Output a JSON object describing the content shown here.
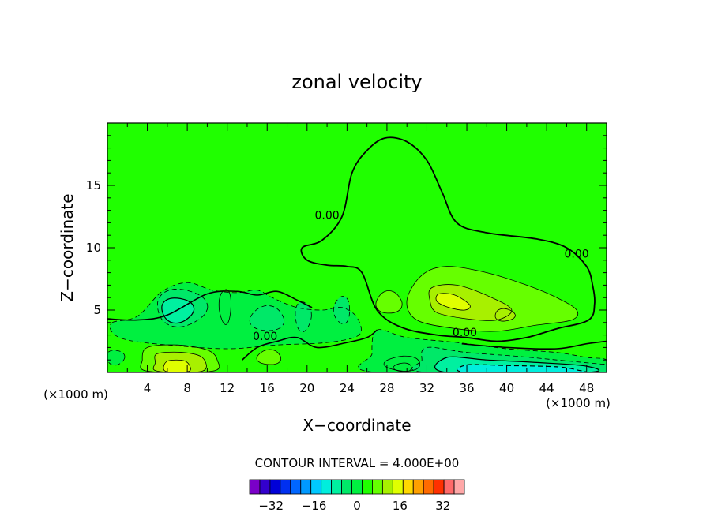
{
  "chart_data": {
    "type": "contour",
    "title": "zonal velocity",
    "xlabel": "X−coordinate",
    "ylabel": "Z−coordinate",
    "x_unit_label": "(×1000 m)",
    "z_unit_label": "(×1000 m)",
    "xlim": [
      0,
      50
    ],
    "ylim": [
      0,
      20
    ],
    "x_ticks": [
      4,
      8,
      12,
      16,
      20,
      24,
      28,
      32,
      36,
      40,
      44,
      48
    ],
    "y_ticks": [
      5,
      10,
      15
    ],
    "contour_interval_text": "CONTOUR INTERVAL = 4.000E+00",
    "contour_labels": [
      {
        "text": "0.00",
        "x": 22.0,
        "z": 12.3
      },
      {
        "text": "0.00",
        "x": 47.0,
        "z": 9.2
      },
      {
        "text": "0.00",
        "x": 15.8,
        "z": 2.6
      },
      {
        "text": "0.00",
        "x": 35.8,
        "z": 2.9
      }
    ],
    "zero_contour": [
      [
        19.5,
        10.0
      ],
      [
        21.5,
        10.6
      ],
      [
        23.5,
        12.5
      ],
      [
        24.5,
        16.0
      ],
      [
        26.0,
        17.8
      ],
      [
        27.8,
        18.8
      ],
      [
        30.0,
        18.5
      ],
      [
        32.0,
        17.0
      ],
      [
        33.5,
        14.5
      ],
      [
        35.0,
        12.0
      ],
      [
        38.0,
        11.2
      ],
      [
        43.0,
        10.7
      ],
      [
        46.0,
        10.0
      ],
      [
        48.0,
        8.5
      ],
      [
        48.6,
        7.0
      ],
      [
        48.8,
        5.5
      ],
      [
        48.2,
        4.2
      ],
      [
        45.0,
        3.5
      ],
      [
        42.0,
        2.8
      ],
      [
        39.0,
        2.5
      ],
      [
        36.0,
        2.8
      ],
      [
        33.0,
        3.0
      ],
      [
        29.5,
        3.6
      ],
      [
        27.0,
        5.0
      ],
      [
        25.5,
        8.0
      ],
      [
        24.0,
        8.5
      ],
      [
        22.0,
        8.6
      ],
      [
        20.0,
        9.0
      ],
      [
        19.5,
        10.0
      ]
    ],
    "colorbar": {
      "levels": [
        -40,
        -36,
        -32,
        -28,
        -24,
        -20,
        -16,
        -12,
        -8,
        -4,
        0,
        4,
        8,
        12,
        16,
        20,
        24,
        28,
        32,
        36,
        40
      ],
      "colors": [
        "#7a00c8",
        "#3300cc",
        "#0000d8",
        "#0030f0",
        "#0066ff",
        "#0099ff",
        "#00c8ff",
        "#00eedd",
        "#00f0a0",
        "#00e868",
        "#00f040",
        "#20ff00",
        "#66ff00",
        "#a8f000",
        "#e0ff00",
        "#ffd800",
        "#ffa000",
        "#ff6a00",
        "#ff3000",
        "#ff6a6a",
        "#ffa8a8"
      ],
      "tick_labels": [
        -32,
        -16,
        0,
        16,
        32
      ]
    },
    "regions": [
      {
        "level": 0,
        "color": "#20ff00",
        "kind": "background"
      },
      {
        "level": -4,
        "color": "#00f040"
      },
      {
        "level": -8,
        "color": "#00e868"
      },
      {
        "level": -12,
        "color": "#00f0a0"
      },
      {
        "level": -16,
        "color": "#00eedd"
      },
      {
        "level": 4,
        "color": "#66ff00"
      },
      {
        "level": 8,
        "color": "#a8f000"
      },
      {
        "level": 12,
        "color": "#e0ff00"
      },
      {
        "level": 16,
        "color": "#ffd800"
      }
    ]
  }
}
